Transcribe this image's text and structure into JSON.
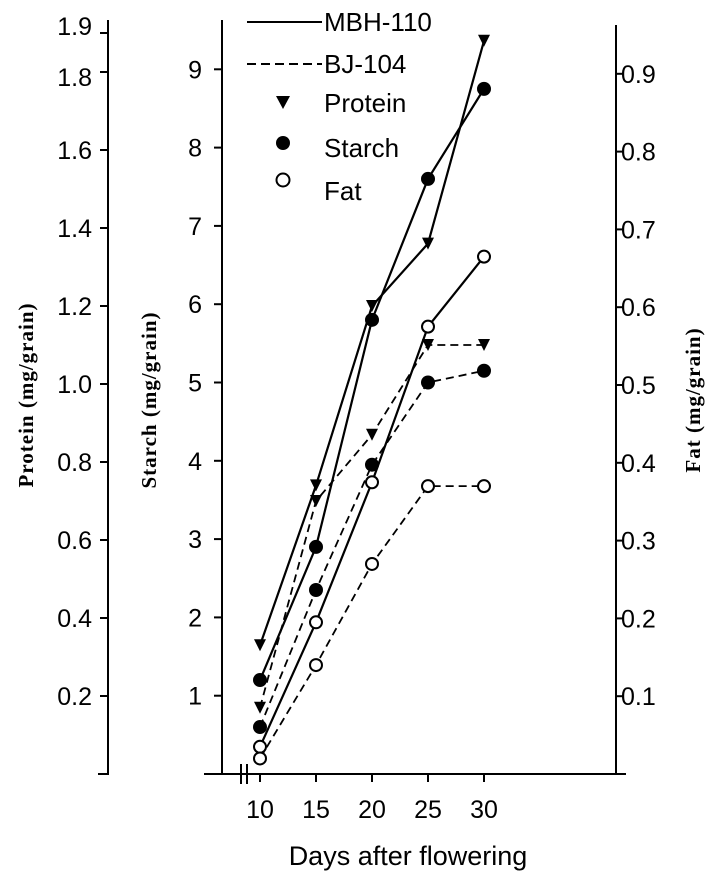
{
  "chart_data": {
    "type": "line",
    "title": "",
    "xlabel": "Days after flowering",
    "x": [
      10,
      15,
      20,
      25,
      30
    ],
    "x_ticks": [
      "10",
      "15",
      "20",
      "25",
      "30"
    ],
    "axes": {
      "protein": {
        "label": "Protein (mg/grain)",
        "side": "left-outer",
        "ylim": [
          0,
          1.9
        ],
        "ticks": [
          "0.2",
          "0.4",
          "0.6",
          "0.8",
          "1.0",
          "1.2",
          "1.4",
          "1.6",
          "1.8",
          "1.9"
        ]
      },
      "starch": {
        "label": "Starch (mg/grain)",
        "side": "left-inner",
        "ylim": [
          0,
          9.5
        ],
        "ticks": [
          "1",
          "2",
          "3",
          "4",
          "5",
          "6",
          "7",
          "8",
          "9"
        ]
      },
      "fat": {
        "label": "Fat (mg/grain)",
        "side": "right",
        "ylim": [
          0,
          0.95
        ],
        "ticks": [
          "0.1",
          "0.2",
          "0.3",
          "0.4",
          "0.5",
          "0.6",
          "0.7",
          "0.8",
          "0.9"
        ]
      }
    },
    "series": [
      {
        "name": "Protein",
        "variety": "MBH-110",
        "axis": "protein",
        "marker": "triangle-down",
        "line": "solid",
        "values": [
          0.33,
          0.74,
          1.2,
          1.36,
          1.88
        ]
      },
      {
        "name": "Protein",
        "variety": "BJ-104",
        "axis": "protein",
        "marker": "triangle-down",
        "line": "dashed",
        "values": [
          0.17,
          0.7,
          0.87,
          1.1,
          1.1
        ]
      },
      {
        "name": "Starch",
        "variety": "MBH-110",
        "axis": "starch",
        "marker": "filled-circle",
        "line": "solid",
        "values": [
          1.2,
          2.9,
          5.8,
          7.6,
          8.75
        ]
      },
      {
        "name": "Starch",
        "variety": "BJ-104",
        "axis": "starch",
        "marker": "filled-circle",
        "line": "dashed",
        "values": [
          0.6,
          2.35,
          3.95,
          5.0,
          5.15
        ]
      },
      {
        "name": "Fat",
        "variety": "MBH-110",
        "axis": "fat",
        "marker": "open-circle",
        "line": "solid",
        "values": [
          0.035,
          0.195,
          0.375,
          0.575,
          0.665
        ]
      },
      {
        "name": "Fat",
        "variety": "BJ-104",
        "axis": "fat",
        "marker": "open-circle",
        "line": "dashed",
        "values": [
          0.02,
          0.14,
          0.27,
          0.37,
          0.37
        ]
      }
    ],
    "legend": {
      "placement": "top",
      "entries": [
        {
          "label": "MBH-110",
          "kind": "line",
          "style": "solid"
        },
        {
          "label": "BJ-104",
          "kind": "line",
          "style": "dashed"
        },
        {
          "label": "Protein",
          "kind": "marker",
          "marker": "triangle-down"
        },
        {
          "label": "Starch",
          "kind": "marker",
          "marker": "filled-circle"
        },
        {
          "label": "Fat",
          "kind": "marker",
          "marker": "open-circle"
        }
      ]
    },
    "colors": {
      "ink": "#000000",
      "background": "#ffffff"
    },
    "grid": false
  }
}
